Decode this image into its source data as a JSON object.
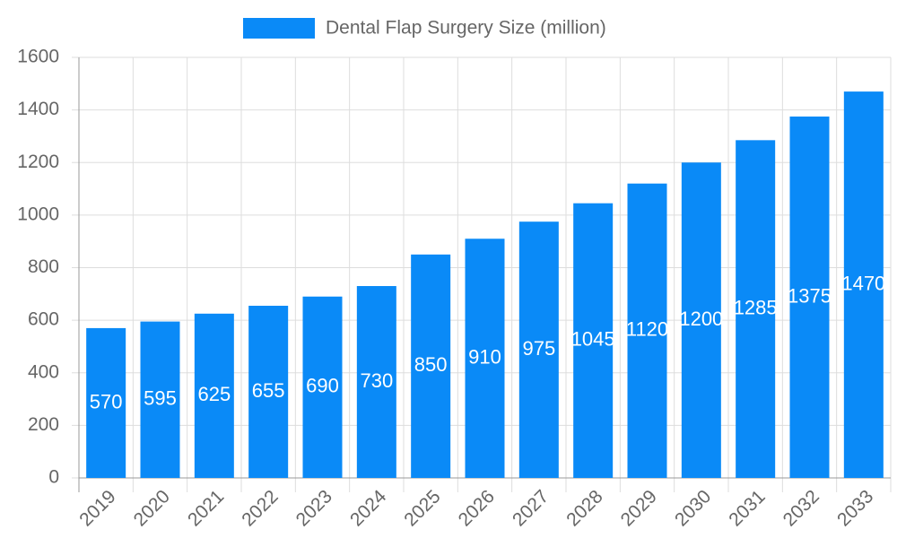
{
  "chart_data": {
    "type": "bar",
    "categories": [
      "2019",
      "2020",
      "2021",
      "2022",
      "2023",
      "2024",
      "2025",
      "2026",
      "2027",
      "2028",
      "2029",
      "2030",
      "2031",
      "2032",
      "2033"
    ],
    "series": [
      {
        "name": "Dental Flap Surgery Size (million)",
        "color": "#0a8af7",
        "values": [
          570,
          595,
          625,
          655,
          690,
          730,
          850,
          910,
          975,
          1045,
          1120,
          1200,
          1285,
          1375,
          1470
        ]
      }
    ],
    "ylim": [
      0,
      1600
    ],
    "yticks": [
      0,
      200,
      400,
      600,
      800,
      1000,
      1200,
      1400,
      1600
    ],
    "grid": true,
    "legend": "top"
  }
}
